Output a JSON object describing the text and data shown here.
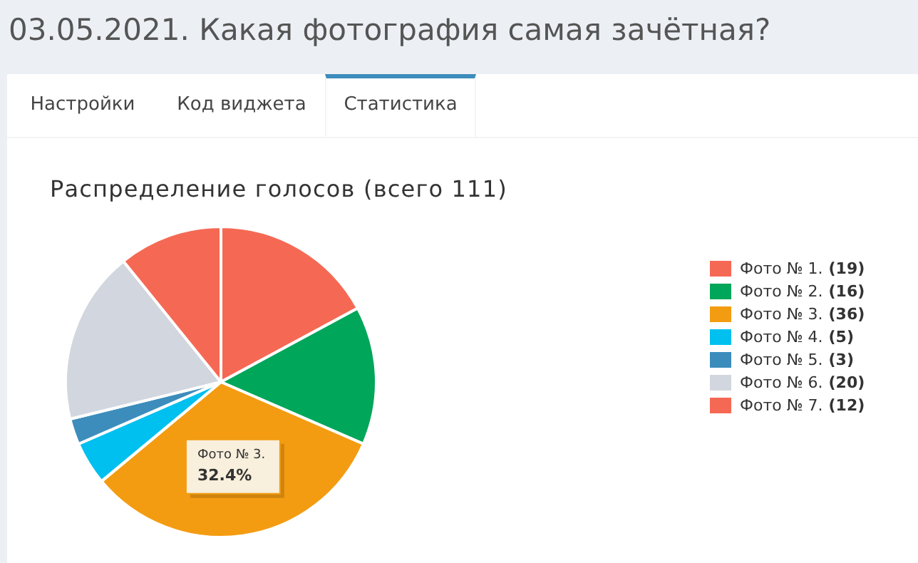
{
  "chart_data": {
    "type": "pie",
    "title": "03.05.2021. Какая фотография самая зачётная?",
    "subtitle": "Распределение голосов (всего 111)",
    "categories": [
      "Фото № 1.",
      "Фото № 2.",
      "Фото № 3.",
      "Фото № 4.",
      "Фото № 5.",
      "Фото № 6.",
      "Фото № 7."
    ],
    "values": [
      19,
      16,
      36,
      5,
      3,
      20,
      12
    ],
    "value_labels": [
      "(19)",
      "(16)",
      "(36)",
      "(5)",
      "(3)",
      "(20)",
      "(12)"
    ],
    "colors": [
      "#f56954",
      "#00a65a",
      "#f39c12",
      "#00c0ef",
      "#3c8dbc",
      "#d2d6de",
      "#f56954"
    ],
    "legend": "right",
    "annotations": [
      "Настройки",
      "Код виджета",
      "Статистика",
      "Фото № 3.",
      "32.4%"
    ]
  }
}
